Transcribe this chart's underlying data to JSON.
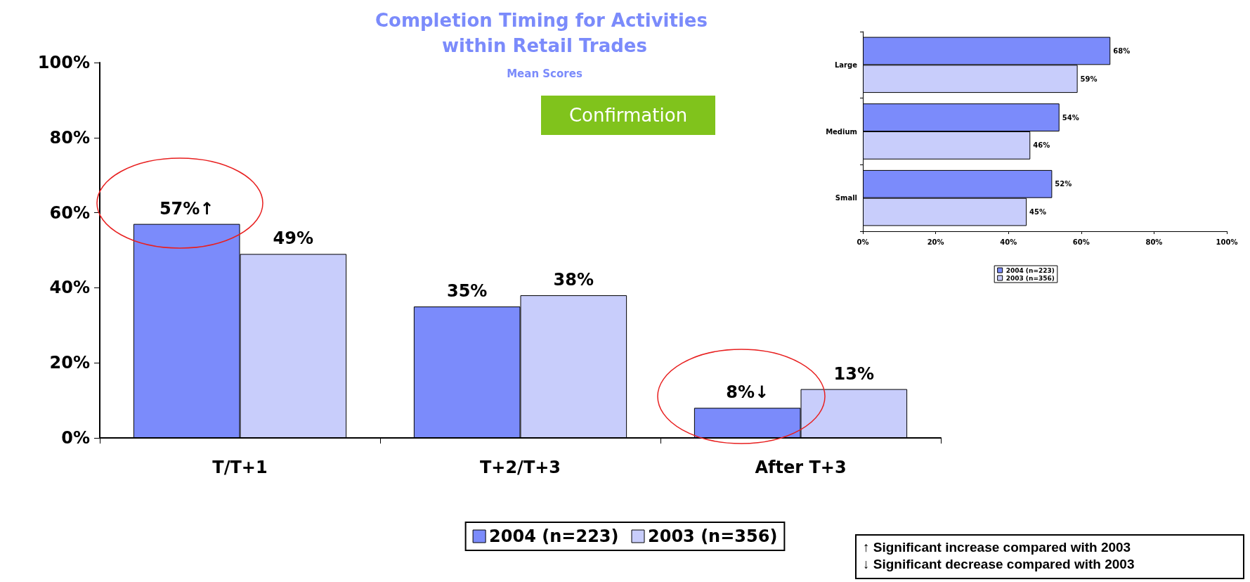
{
  "chart_data": [
    {
      "type": "bar",
      "title": "Completion Timing for Activities within Retail Trades",
      "subtitle": "Mean Scores",
      "categories": [
        "T/T+1",
        "T+2/T+3",
        "After T+3"
      ],
      "series": [
        {
          "name": "2004 (n=223)",
          "color": "#7b8bfb",
          "values": [
            57,
            35,
            8
          ],
          "value_labels": [
            "57%↑",
            "35%",
            "8%↓"
          ]
        },
        {
          "name": "2003 (n=356)",
          "color": "#c8cdfb",
          "values": [
            49,
            38,
            13
          ],
          "value_labels": [
            "49%",
            "38%",
            "13%"
          ]
        }
      ],
      "ylim": [
        0,
        100
      ],
      "yticks": [
        {
          "value": 0,
          "label": "0%"
        },
        {
          "value": 20,
          "label": "20%"
        },
        {
          "value": 40,
          "label": "40%"
        },
        {
          "value": 60,
          "label": "60%"
        },
        {
          "value": 80,
          "label": "80%"
        },
        {
          "value": 100,
          "label": "100%"
        }
      ],
      "grid": false,
      "legend": "bottom",
      "annotations": [
        "Confirmation",
        "↑ Significant increase compared with 2003",
        "↓ Significant decrease compared with 2003"
      ]
    },
    {
      "type": "bar",
      "orientation": "horizontal",
      "categories": [
        "Large",
        "Medium",
        "Small"
      ],
      "series": [
        {
          "name": "2004 (n=223)",
          "color": "#7b8bfb",
          "values": [
            68,
            54,
            52
          ],
          "value_labels": [
            "68%",
            "54%",
            "52%"
          ]
        },
        {
          "name": "2003 (n=356)",
          "color": "#c8cdfb",
          "values": [
            59,
            46,
            45
          ],
          "value_labels": [
            "59%",
            "46%",
            "45%"
          ]
        }
      ],
      "xlim": [
        0,
        100
      ],
      "xticks": [
        {
          "value": 0,
          "label": "0%"
        },
        {
          "value": 20,
          "label": "20%"
        },
        {
          "value": 40,
          "label": "40%"
        },
        {
          "value": 60,
          "label": "60%"
        },
        {
          "value": 80,
          "label": "80%"
        },
        {
          "value": 100,
          "label": "100%"
        }
      ],
      "grid": false,
      "legend": "bottom"
    }
  ]
}
